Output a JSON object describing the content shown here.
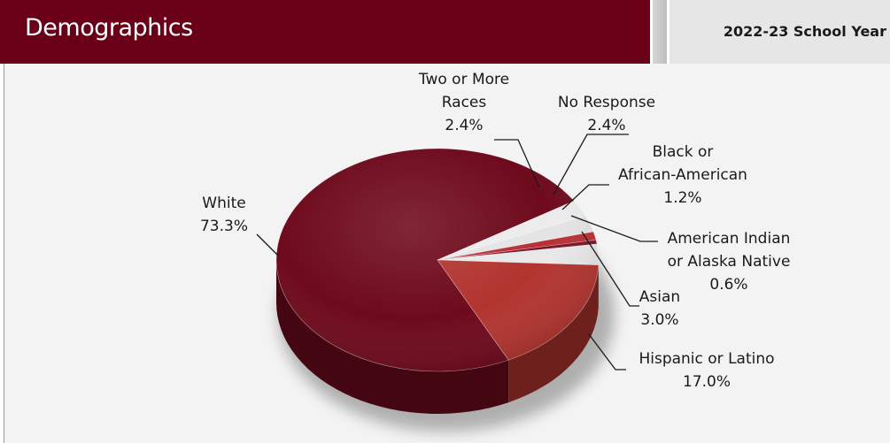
{
  "header": {
    "title": "Demographics",
    "school_year": "2022-23 School Year"
  },
  "chart_data": {
    "type": "pie",
    "title": "",
    "slices": [
      {
        "name": "White",
        "label_lines": [
          "White"
        ],
        "value_label": "73.3%",
        "value": 73.3,
        "color": "#6e0a1c"
      },
      {
        "name": "Two or More Races",
        "label_lines": [
          "Two or More",
          "Races"
        ],
        "value_label": "2.4%",
        "value": 2.4,
        "color": "#ececec"
      },
      {
        "name": "No Response",
        "label_lines": [
          "No Response"
        ],
        "value_label": "2.4%",
        "value": 2.4,
        "color": "#e4e4e4"
      },
      {
        "name": "Black or African-American",
        "label_lines": [
          "Black or",
          "African-American"
        ],
        "value_label": "1.2%",
        "value": 1.2,
        "color": "#b82f35"
      },
      {
        "name": "American Indian or Alaska Native",
        "label_lines": [
          "American Indian",
          "or Alaska Native"
        ],
        "value_label": "0.6%",
        "value": 0.6,
        "color": "#7a1526"
      },
      {
        "name": "Asian",
        "label_lines": [
          "Asian"
        ],
        "value_label": "3.0%",
        "value": 3.0,
        "color": "#e8e8e8"
      },
      {
        "name": "Hispanic or Latino",
        "label_lines": [
          "Hispanic or Latino"
        ],
        "value_label": "17.0%",
        "value": 17.0,
        "color": "#b2342f"
      }
    ]
  }
}
